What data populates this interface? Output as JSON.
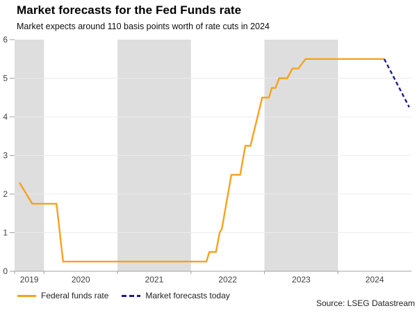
{
  "source": "Source: LSEG Datastream",
  "colors": {
    "band": "#DEDEDE",
    "gridline": "#ECECEC",
    "axis": "#A0A0A0",
    "tick": "#A0A0A0",
    "tick_label": "#404040",
    "series_solid": "#F9A11B",
    "series_dashed": "#1C1C8C"
  },
  "chart_data": {
    "type": "line",
    "title": "Market forecasts for the Fed Funds rate",
    "subtitle": "Market expects around 110 basis points worth of rate cuts in 2024",
    "xlabel": "",
    "ylabel": "",
    "ylim": [
      0,
      6
    ],
    "yticks": [
      0,
      1,
      2,
      3,
      4,
      5,
      6
    ],
    "gridline_values": [
      1,
      2,
      3,
      4,
      5
    ],
    "xlim": [
      2019.6,
      2025.0
    ],
    "x_boundaries": [
      2019.6,
      2020,
      2021,
      2022,
      2023,
      2024,
      2025
    ],
    "x_tick_positions": [
      2019.6,
      2020,
      2021,
      2022,
      2023,
      2024
    ],
    "x_labels": [
      "2019",
      "2020",
      "2021",
      "2022",
      "2023",
      "2024"
    ],
    "shaded_bands": [
      [
        2019.6,
        2020
      ],
      [
        2021,
        2022
      ],
      [
        2023,
        2024
      ]
    ],
    "grid": "horizontal",
    "legend_position": "bottom-left",
    "series": [
      {
        "name": "Federal funds rate",
        "style": "solid",
        "color": "#F9A11B",
        "points": [
          [
            2019.665,
            2.3
          ],
          [
            2019.84,
            1.75
          ],
          [
            2020.17,
            1.75
          ],
          [
            2020.26,
            0.25
          ],
          [
            2022.21,
            0.25
          ],
          [
            2022.25,
            0.5
          ],
          [
            2022.34,
            0.5
          ],
          [
            2022.39,
            1.0
          ],
          [
            2022.42,
            1.1
          ],
          [
            2022.55,
            2.5
          ],
          [
            2022.67,
            2.5
          ],
          [
            2022.74,
            3.25
          ],
          [
            2022.81,
            3.25
          ],
          [
            2022.97,
            4.5
          ],
          [
            2023.06,
            4.5
          ],
          [
            2023.1,
            4.75
          ],
          [
            2023.15,
            4.75
          ],
          [
            2023.2,
            5.0
          ],
          [
            2023.31,
            5.0
          ],
          [
            2023.38,
            5.25
          ],
          [
            2023.46,
            5.25
          ],
          [
            2023.56,
            5.5
          ],
          [
            2024.63,
            5.5
          ]
        ]
      },
      {
        "name": "Market forecasts today",
        "style": "dashed",
        "color": "#1C1C8C",
        "points": [
          [
            2024.63,
            5.5
          ],
          [
            2024.97,
            4.25
          ]
        ]
      }
    ]
  }
}
